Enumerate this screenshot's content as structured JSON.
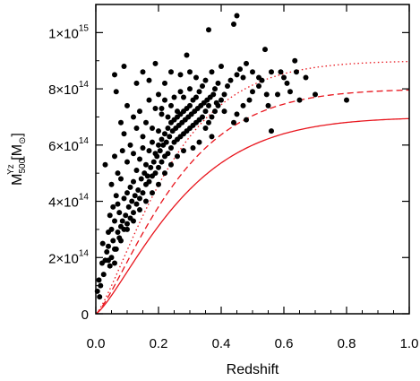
{
  "chart_data": {
    "type": "scatter",
    "xlabel": "Redshift",
    "ylabel": {
      "main": "M",
      "superscript": "Yz",
      "subscript": "500",
      "unit_open": " [M",
      "unit_sub": "⊙",
      "unit_close": "]"
    },
    "xlim": [
      0.0,
      1.0
    ],
    "ylim": [
      0,
      1100000000000000.0
    ],
    "xticks": [
      {
        "value": 0.0,
        "label": "0.0"
      },
      {
        "value": 0.2,
        "label": "0.2"
      },
      {
        "value": 0.4,
        "label": "0.4"
      },
      {
        "value": 0.6,
        "label": "0.6"
      },
      {
        "value": 0.8,
        "label": "0.8"
      },
      {
        "value": 1.0,
        "label": "1.0"
      }
    ],
    "yticks": [
      {
        "value": 0,
        "mantissa": "0",
        "exp": ""
      },
      {
        "value": 200000000000000.0,
        "mantissa": "2×10",
        "exp": "14"
      },
      {
        "value": 400000000000000.0,
        "mantissa": "4×10",
        "exp": "14"
      },
      {
        "value": 600000000000000.0,
        "mantissa": "6×10",
        "exp": "14"
      },
      {
        "value": 800000000000000.0,
        "mantissa": "8×10",
        "exp": "14"
      },
      {
        "value": 1000000000000000.0,
        "mantissa": "1×10",
        "exp": "15"
      }
    ],
    "colors": {
      "points": "#000000",
      "curves": "#e8141c",
      "axes": "#000000"
    },
    "curves": [
      {
        "style": "solid",
        "plateau": 700000000000000.0,
        "scale": 0.3
      },
      {
        "style": "dashed",
        "plateau": 800000000000000.0,
        "scale": 0.28
      },
      {
        "style": "dotted",
        "plateau": 900000000000000.0,
        "scale": 0.26
      }
    ],
    "points": [
      [
        0.005,
        80000000000000.0
      ],
      [
        0.01,
        120000000000000.0
      ],
      [
        0.012,
        60000000000000.0
      ],
      [
        0.015,
        100000000000000.0
      ],
      [
        0.02,
        180000000000000.0
      ],
      [
        0.022,
        250000000000000.0
      ],
      [
        0.025,
        140000000000000.0
      ],
      [
        0.03,
        190000000000000.0
      ],
      [
        0.03,
        530000000000000.0
      ],
      [
        0.035,
        220000000000000.0
      ],
      [
        0.04,
        290000000000000.0
      ],
      [
        0.04,
        240000000000000.0
      ],
      [
        0.045,
        170000000000000.0
      ],
      [
        0.045,
        350000000000000.0
      ],
      [
        0.05,
        200000000000000.0
      ],
      [
        0.05,
        300000000000000.0
      ],
      [
        0.05,
        460000000000000.0
      ],
      [
        0.055,
        260000000000000.0
      ],
      [
        0.055,
        380000000000000.0
      ],
      [
        0.06,
        180000000000000.0
      ],
      [
        0.06,
        330000000000000.0
      ],
      [
        0.06,
        560000000000000.0
      ],
      [
        0.06,
        850000000000000.0
      ],
      [
        0.065,
        230000000000000.0
      ],
      [
        0.065,
        420000000000000.0
      ],
      [
        0.065,
        790000000000000.0
      ],
      [
        0.07,
        290000000000000.0
      ],
      [
        0.07,
        390000000000000.0
      ],
      [
        0.07,
        500000000000000.0
      ],
      [
        0.075,
        270000000000000.0
      ],
      [
        0.075,
        360000000000000.0
      ],
      [
        0.08,
        310000000000000.0
      ],
      [
        0.08,
        480000000000000.0
      ],
      [
        0.08,
        680000000000000.0
      ],
      [
        0.085,
        330000000000000.0
      ],
      [
        0.085,
        580000000000000.0
      ],
      [
        0.09,
        300000000000000.0
      ],
      [
        0.09,
        410000000000000.0
      ],
      [
        0.09,
        640000000000000.0
      ],
      [
        0.09,
        880000000000000.0
      ],
      [
        0.095,
        350000000000000.0
      ],
      [
        0.1,
        320000000000000.0
      ],
      [
        0.1,
        430000000000000.0
      ],
      [
        0.1,
        540000000000000.0
      ],
      [
        0.1,
        740000000000000.0
      ],
      [
        0.105,
        380000000000000.0
      ],
      [
        0.11,
        340000000000000.0
      ],
      [
        0.11,
        450000000000000.0
      ],
      [
        0.11,
        600000000000000.0
      ],
      [
        0.115,
        400000000000000.0
      ],
      [
        0.12,
        360000000000000.0
      ],
      [
        0.12,
        470000000000000.0
      ],
      [
        0.12,
        570000000000000.0
      ],
      [
        0.12,
        700000000000000.0
      ],
      [
        0.125,
        420000000000000.0
      ],
      [
        0.13,
        390000000000000.0
      ],
      [
        0.13,
        510000000000000.0
      ],
      [
        0.13,
        660000000000000.0
      ],
      [
        0.13,
        820000000000000.0
      ],
      [
        0.135,
        440000000000000.0
      ],
      [
        0.14,
        410000000000000.0
      ],
      [
        0.14,
        550000000000000.0
      ],
      [
        0.14,
        720000000000000.0
      ],
      [
        0.145,
        480000000000000.0
      ],
      [
        0.15,
        430000000000000.0
      ],
      [
        0.15,
        590000000000000.0
      ],
      [
        0.15,
        630000000000000.0
      ],
      [
        0.15,
        860000000000000.0
      ],
      [
        0.155,
        500000000000000.0
      ],
      [
        0.16,
        460000000000000.0
      ],
      [
        0.16,
        530000000000000.0
      ],
      [
        0.16,
        680000000000000.0
      ],
      [
        0.165,
        490000000000000.0
      ],
      [
        0.17,
        470000000000000.0
      ],
      [
        0.17,
        580000000000000.0
      ],
      [
        0.17,
        760000000000000.0
      ],
      [
        0.17,
        830000000000000.0
      ],
      [
        0.175,
        520000000000000.0
      ],
      [
        0.18,
        490000000000000.0
      ],
      [
        0.18,
        610000000000000.0
      ],
      [
        0.18,
        660000000000000.0
      ],
      [
        0.185,
        540000000000000.0
      ],
      [
        0.19,
        500000000000000.0
      ],
      [
        0.19,
        570000000000000.0
      ],
      [
        0.19,
        730000000000000.0
      ],
      [
        0.19,
        890000000000000.0
      ],
      [
        0.195,
        560000000000000.0
      ],
      [
        0.2,
        520000000000000.0
      ],
      [
        0.2,
        600000000000000.0
      ],
      [
        0.2,
        650000000000000.0
      ],
      [
        0.2,
        780000000000000.0
      ],
      [
        0.205,
        580000000000000.0
      ],
      [
        0.21,
        540000000000000.0
      ],
      [
        0.21,
        620000000000000.0
      ],
      [
        0.21,
        710000000000000.0
      ],
      [
        0.21,
        730000000000000.0
      ],
      [
        0.215,
        600000000000000.0
      ],
      [
        0.22,
        560000000000000.0
      ],
      [
        0.22,
        640000000000000.0
      ],
      [
        0.22,
        760000000000000.0
      ],
      [
        0.22,
        820000000000000.0
      ],
      [
        0.225,
        610000000000000.0
      ],
      [
        0.23,
        570000000000000.0
      ],
      [
        0.23,
        660000000000000.0
      ],
      [
        0.23,
        700000000000000.0
      ],
      [
        0.235,
        630000000000000.0
      ],
      [
        0.24,
        590000000000000.0
      ],
      [
        0.24,
        680000000000000.0
      ],
      [
        0.24,
        740000000000000.0
      ],
      [
        0.24,
        860000000000000.0
      ],
      [
        0.245,
        650000000000000.0
      ],
      [
        0.25,
        610000000000000.0
      ],
      [
        0.25,
        690000000000000.0
      ],
      [
        0.25,
        770000000000000.0
      ],
      [
        0.255,
        660000000000000.0
      ],
      [
        0.26,
        620000000000000.0
      ],
      [
        0.26,
        700000000000000.0
      ],
      [
        0.26,
        720000000000000.0
      ],
      [
        0.265,
        670000000000000.0
      ],
      [
        0.27,
        630000000000000.0
      ],
      [
        0.27,
        710000000000000.0
      ],
      [
        0.27,
        790000000000000.0
      ],
      [
        0.27,
        850000000000000.0
      ],
      [
        0.275,
        680000000000000.0
      ],
      [
        0.28,
        640000000000000.0
      ],
      [
        0.28,
        720000000000000.0
      ],
      [
        0.28,
        770000000000000.0
      ],
      [
        0.285,
        690000000000000.0
      ],
      [
        0.29,
        650000000000000.0
      ],
      [
        0.29,
        730000000000000.0
      ],
      [
        0.29,
        920000000000000.0
      ],
      [
        0.295,
        700000000000000.0
      ],
      [
        0.3,
        660000000000000.0
      ],
      [
        0.3,
        740000000000000.0
      ],
      [
        0.3,
        800000000000000.0
      ],
      [
        0.3,
        860000000000000.0
      ],
      [
        0.305,
        710000000000000.0
      ],
      [
        0.31,
        670000000000000.0
      ],
      [
        0.31,
        760000000000000.0
      ],
      [
        0.315,
        720000000000000.0
      ],
      [
        0.32,
        680000000000000.0
      ],
      [
        0.32,
        770000000000000.0
      ],
      [
        0.32,
        840000000000000.0
      ],
      [
        0.325,
        730000000000000.0
      ],
      [
        0.33,
        690000000000000.0
      ],
      [
        0.33,
        790000000000000.0
      ],
      [
        0.335,
        740000000000000.0
      ],
      [
        0.34,
        700000000000000.0
      ],
      [
        0.34,
        810000000000000.0
      ],
      [
        0.345,
        750000000000000.0
      ],
      [
        0.35,
        660000000000000.0
      ],
      [
        0.35,
        720000000000000.0
      ],
      [
        0.35,
        830000000000000.0
      ],
      [
        0.355,
        760000000000000.0
      ],
      [
        0.36,
        680000000000000.0
      ],
      [
        0.36,
        740000000000000.0
      ],
      [
        0.36,
        1010000000000000.0
      ],
      [
        0.365,
        770000000000000.0
      ],
      [
        0.37,
        700000000000000.0
      ],
      [
        0.37,
        860000000000000.0
      ],
      [
        0.375,
        780000000000000.0
      ],
      [
        0.38,
        720000000000000.0
      ],
      [
        0.38,
        800000000000000.0
      ],
      [
        0.385,
        750000000000000.0
      ],
      [
        0.39,
        740000000000000.0
      ],
      [
        0.39,
        820000000000000.0
      ],
      [
        0.4,
        760000000000000.0
      ],
      [
        0.4,
        880000000000000.0
      ],
      [
        0.41,
        780000000000000.0
      ],
      [
        0.42,
        810000000000000.0
      ],
      [
        0.43,
        830000000000000.0
      ],
      [
        0.44,
        1030000000000000.0
      ],
      [
        0.45,
        850000000000000.0
      ],
      [
        0.45,
        1060000000000000.0
      ],
      [
        0.46,
        870000000000000.0
      ],
      [
        0.47,
        840000000000000.0
      ],
      [
        0.48,
        890000000000000.0
      ],
      [
        0.5,
        860000000000000.0
      ],
      [
        0.52,
        810000000000000.0
      ],
      [
        0.53,
        830000000000000.0
      ],
      [
        0.54,
        940000000000000.0
      ],
      [
        0.55,
        740000000000000.0
      ],
      [
        0.56,
        650000000000000.0
      ],
      [
        0.58,
        780000000000000.0
      ],
      [
        0.6,
        840000000000000.0
      ],
      [
        0.62,
        790000000000000.0
      ],
      [
        0.64,
        860000000000000.0
      ],
      [
        0.65,
        760000000000000.0
      ],
      [
        0.67,
        840000000000000.0
      ],
      [
        0.7,
        780000000000000.0
      ],
      [
        0.8,
        760000000000000.0
      ],
      [
        0.545,
        780000000000000.0
      ],
      [
        0.59,
        860000000000000.0
      ],
      [
        0.56,
        860000000000000.0
      ],
      [
        0.61,
        820000000000000.0
      ],
      [
        0.635,
        900000000000000.0
      ],
      [
        0.41,
        720000000000000.0
      ],
      [
        0.37,
        630000000000000.0
      ],
      [
        0.44,
        680000000000000.0
      ],
      [
        0.48,
        690000000000000.0
      ],
      [
        0.33,
        610000000000000.0
      ],
      [
        0.31,
        590000000000000.0
      ],
      [
        0.28,
        580000000000000.0
      ],
      [
        0.26,
        560000000000000.0
      ],
      [
        0.24,
        530000000000000.0
      ],
      [
        0.22,
        500000000000000.0
      ],
      [
        0.2,
        460000000000000.0
      ],
      [
        0.18,
        430000000000000.0
      ],
      [
        0.16,
        400000000000000.0
      ],
      [
        0.14,
        370000000000000.0
      ],
      [
        0.12,
        330000000000000.0
      ],
      [
        0.1,
        300000000000000.0
      ],
      [
        0.08,
        260000000000000.0
      ],
      [
        0.06,
        230000000000000.0
      ],
      [
        0.04,
        190000000000000.0
      ],
      [
        0.45,
        710000000000000.0
      ],
      [
        0.47,
        740000000000000.0
      ],
      [
        0.49,
        760000000000000.0
      ],
      [
        0.5,
        790000000000000.0
      ],
      [
        0.52,
        840000000000000.0
      ]
    ]
  }
}
